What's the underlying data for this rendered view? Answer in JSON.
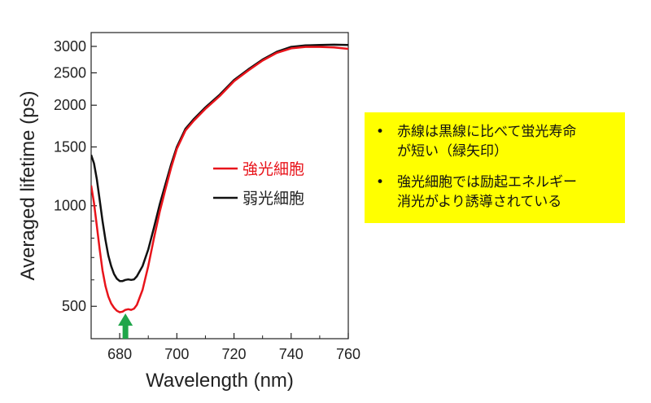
{
  "chart_data": {
    "type": "line",
    "xlabel": "Wavelength (nm)",
    "ylabel": "Averaged lifetime (ps)",
    "xlim": [
      670,
      760
    ],
    "ylim": [
      400,
      3300
    ],
    "yscale": "log",
    "xticks": [
      680,
      700,
      720,
      740,
      760
    ],
    "yticks": [
      500,
      1000,
      1500,
      2000,
      2500,
      3000
    ],
    "grid": false,
    "legend_position": "right-center",
    "series": [
      {
        "name": "強光細胞",
        "color": "#e8141b",
        "x": [
          670,
          671,
          672,
          673,
          674,
          675,
          676,
          677,
          678,
          679,
          680,
          681,
          682,
          683,
          684,
          685,
          686,
          688,
          690,
          692,
          694,
          696,
          698,
          700,
          703,
          706,
          710,
          715,
          720,
          725,
          730,
          735,
          740,
          745,
          750,
          755,
          760
        ],
        "y": [
          1150,
          1020,
          870,
          740,
          640,
          575,
          535,
          510,
          495,
          485,
          480,
          482,
          488,
          490,
          488,
          492,
          505,
          560,
          660,
          800,
          960,
          1120,
          1300,
          1480,
          1680,
          1800,
          1950,
          2130,
          2360,
          2540,
          2720,
          2870,
          2960,
          2990,
          2990,
          2980,
          2950
        ]
      },
      {
        "name": "弱光細胞",
        "color": "#111111",
        "x": [
          670,
          671,
          672,
          673,
          674,
          675,
          676,
          677,
          678,
          679,
          680,
          681,
          682,
          683,
          684,
          685,
          686,
          688,
          690,
          692,
          694,
          696,
          698,
          700,
          703,
          706,
          710,
          715,
          720,
          725,
          730,
          735,
          740,
          745,
          750,
          755,
          760
        ],
        "y": [
          1420,
          1340,
          1200,
          1040,
          900,
          790,
          710,
          660,
          625,
          605,
          595,
          595,
          600,
          602,
          600,
          602,
          615,
          660,
          740,
          860,
          1010,
          1160,
          1330,
          1500,
          1700,
          1820,
          1970,
          2150,
          2380,
          2560,
          2740,
          2890,
          2990,
          3020,
          3030,
          3035,
          3030
        ]
      }
    ],
    "annotation": {
      "type": "arrow",
      "color": "#1fa64a",
      "x": 682,
      "direction": "up"
    }
  },
  "notes": {
    "bullet_symbol": "•",
    "items": [
      {
        "line1": "赤線は黒線に比べて蛍光寿命",
        "line2": "が短い（緑矢印）"
      },
      {
        "line1": "強光細胞では励起エネルギー",
        "line2": "消光がより誘導されている"
      }
    ]
  }
}
